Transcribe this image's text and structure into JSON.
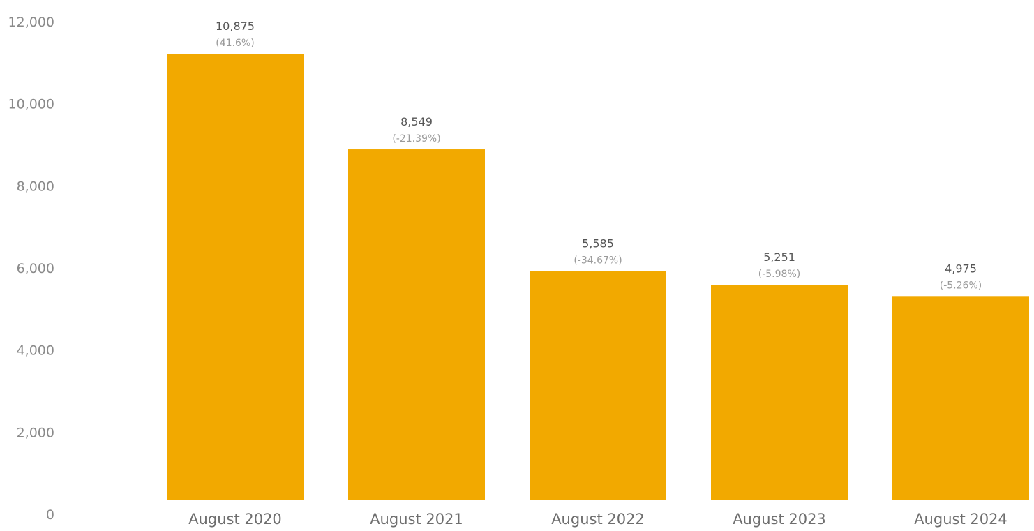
{
  "chart_data": {
    "type": "bar",
    "categories": [
      "August 2020",
      "August 2021",
      "August 2022",
      "August 2023",
      "August 2024"
    ],
    "values": [
      10875,
      8549,
      5585,
      5251,
      4975
    ],
    "value_labels": [
      "10,875",
      "8,549",
      "5,585",
      "5,251",
      "4,975"
    ],
    "change_labels": [
      "(41.6%)",
      "(-21.39%)",
      "(-34.67%)",
      "(-5.98%)",
      "(-5.26%)"
    ],
    "yticks": [
      "0",
      "2,000",
      "4,000",
      "6,000",
      "8,000",
      "10,000",
      "12,000"
    ],
    "ytick_values": [
      0,
      2000,
      4000,
      6000,
      8000,
      10000,
      12000
    ],
    "ylim": [
      0,
      12000
    ],
    "grid": false,
    "bar_color": "#f2a900",
    "title": "",
    "xlabel": "",
    "ylabel": ""
  }
}
